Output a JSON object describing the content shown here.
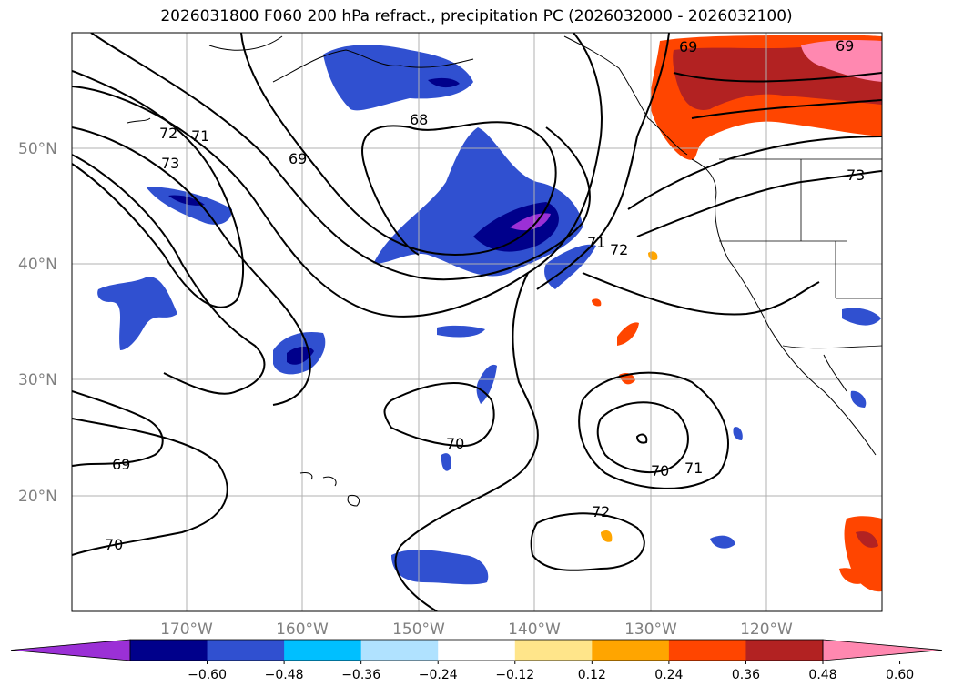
{
  "title": "2026031800 F060 200 hPa refract., precipitation PC (2026032000 - 2026032100)",
  "lat_labels": [
    "50°N",
    "40°N",
    "30°N",
    "20°N"
  ],
  "lon_labels": [
    "170°W",
    "160°W",
    "150°W",
    "140°W",
    "130°W",
    "120°W"
  ],
  "contour_labels": [
    "72",
    "71",
    "73",
    "69",
    "68",
    "69",
    "71",
    "72",
    "70",
    "70",
    "71",
    "72",
    "69",
    "70",
    "69",
    "73"
  ],
  "colorbar": {
    "ticks": [
      "−0.60",
      "−0.48",
      "−0.36",
      "−0.24",
      "−0.12",
      "0.12",
      "0.24",
      "0.36",
      "0.48",
      "0.60"
    ],
    "colors": [
      "#9b30d6",
      "#00008b",
      "#3050d0",
      "#00bfff",
      "#b0e2ff",
      "#ffffff",
      "#ffe58a",
      "#ffa500",
      "#ff4500",
      "#b22222",
      "#ff88b0"
    ]
  },
  "colors": {
    "contour": "#000000",
    "grid": "#b0b0b0",
    "coast": "#000000"
  }
}
